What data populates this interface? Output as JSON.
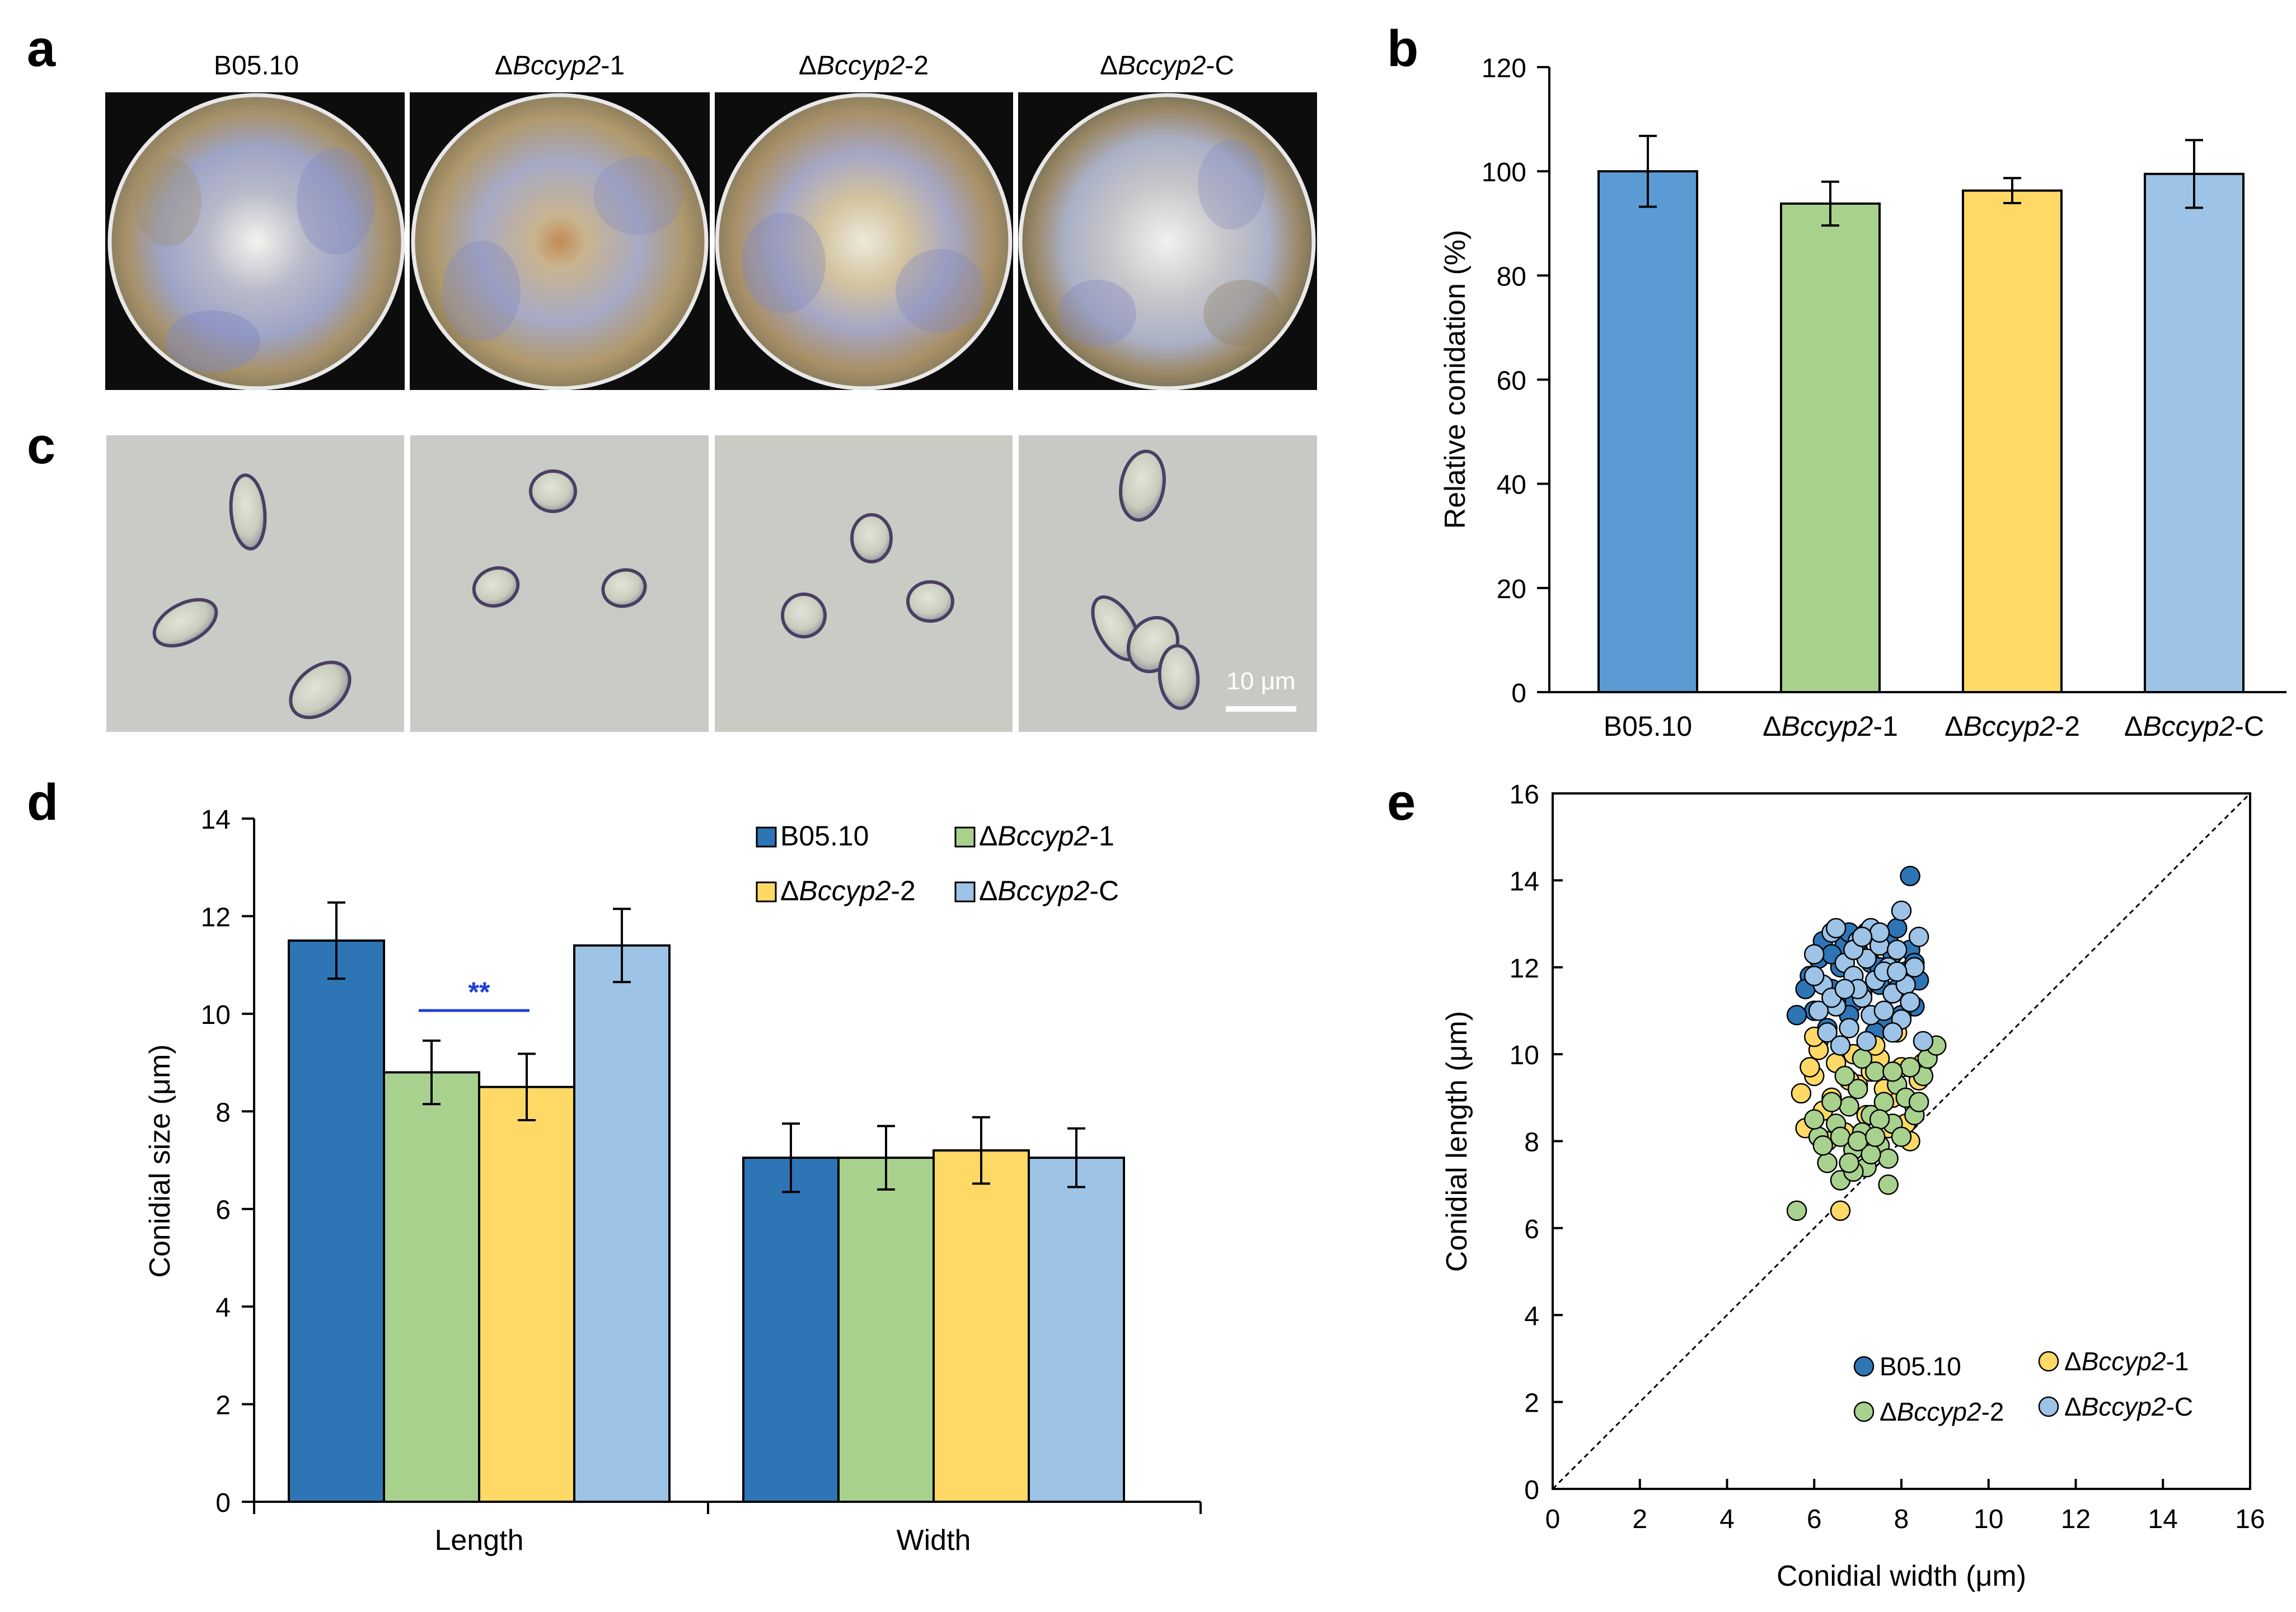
{
  "figure": {
    "panel_letters": {
      "a": "a",
      "b": "b",
      "c": "c",
      "d": "d",
      "e": "e"
    },
    "strains": [
      {
        "prefix": "",
        "italic": "",
        "suffix": "B05.10"
      },
      {
        "prefix": "Δ",
        "italic": "Bccyp2",
        "suffix": "-1"
      },
      {
        "prefix": "Δ",
        "italic": "Bccyp2",
        "suffix": "-2"
      },
      {
        "prefix": "Δ",
        "italic": "Bccyp2",
        "suffix": "-C"
      }
    ],
    "scale_bar_label": "10 μm",
    "colors": {
      "b05": "#2e75b6",
      "b05_b": "#5b9bd5",
      "ko1": "#a9d18e",
      "ko2": "#ffd966",
      "comp": "#9dc3e6",
      "sig": "#1f3fd6",
      "axis": "#000000"
    }
  },
  "chart_data": [
    {
      "panel": "b",
      "type": "bar",
      "title": "",
      "xlabel": "",
      "ylabel": "Relative conidation (%)",
      "ylim": [
        0,
        120
      ],
      "yticks": [
        0,
        20,
        40,
        60,
        80,
        100,
        120
      ],
      "categories": [
        "B05.10",
        "ΔBccyp2-1",
        "ΔBccyp2-2",
        "ΔBccyp2-C"
      ],
      "values": [
        100,
        93.8,
        96.3,
        99.5
      ],
      "errors": [
        6.8,
        4.2,
        2.4,
        6.5
      ]
    },
    {
      "panel": "d",
      "type": "bar",
      "title": "",
      "xlabel": "",
      "ylabel": "Conidial size (μm)",
      "ylim": [
        0,
        14
      ],
      "yticks": [
        0,
        2,
        4,
        6,
        8,
        10,
        12,
        14
      ],
      "categories": [
        "Length",
        "Width"
      ],
      "series": [
        {
          "name": "B05.10",
          "values": [
            11.5,
            7.05
          ],
          "errors": [
            0.78,
            0.7
          ]
        },
        {
          "name": "ΔBccyp2-1",
          "values": [
            8.8,
            7.05
          ],
          "errors": [
            0.65,
            0.65
          ]
        },
        {
          "name": "ΔBccyp2-2",
          "values": [
            8.5,
            7.2
          ],
          "errors": [
            0.68,
            0.68
          ]
        },
        {
          "name": "ΔBccyp2-C",
          "values": [
            11.4,
            7.05
          ],
          "errors": [
            0.75,
            0.6
          ]
        }
      ],
      "annotation": "**",
      "legend_position": "top-right"
    },
    {
      "panel": "e",
      "type": "scatter",
      "title": "",
      "xlabel": "Conidial width (μm)",
      "ylabel": "Conidial length (μm)",
      "xlim": [
        0,
        16
      ],
      "ylim": [
        0,
        16
      ],
      "xticks": [
        0,
        2,
        4,
        6,
        8,
        10,
        12,
        14,
        16
      ],
      "yticks": [
        0,
        2,
        4,
        6,
        8,
        10,
        12,
        14,
        16
      ],
      "reference_line": "y = x",
      "legend_position": "bottom-right",
      "series": [
        {
          "name": "B05.10",
          "color": "#2e75b6",
          "points": [
            [
              5.9,
              11.8
            ],
            [
              6.1,
              12.2
            ],
            [
              6.4,
              11.5
            ],
            [
              6.7,
              12.5
            ],
            [
              6.9,
              11.2
            ],
            [
              7.2,
              12.8
            ],
            [
              7.5,
              11.6
            ],
            [
              7.8,
              12.3
            ],
            [
              8.1,
              11.9
            ],
            [
              8.3,
              11.1
            ],
            [
              6.0,
              11.0
            ],
            [
              6.3,
              10.6
            ],
            [
              6.6,
              12.0
            ],
            [
              6.8,
              10.9
            ],
            [
              7.1,
              11.4
            ],
            [
              7.3,
              12.1
            ],
            [
              7.6,
              10.8
            ],
            [
              7.9,
              11.5
            ],
            [
              8.2,
              12.4
            ],
            [
              6.2,
              12.6
            ],
            [
              6.5,
              11.2
            ],
            [
              7.0,
              12.4
            ],
            [
              7.4,
              10.5
            ],
            [
              7.7,
              12.6
            ],
            [
              8.0,
              10.9
            ],
            [
              8.4,
              11.7
            ],
            [
              5.6,
              10.9
            ],
            [
              8.2,
              14.1
            ],
            [
              6.1,
              10.3
            ],
            [
              7.2,
              10.2
            ],
            [
              7.9,
              12.9
            ],
            [
              6.8,
              12.8
            ],
            [
              8.3,
              12.1
            ],
            [
              5.8,
              11.5
            ],
            [
              7.5,
              12.0
            ],
            [
              6.4,
              12.3
            ]
          ]
        },
        {
          "name": "ΔBccyp2-1",
          "color": "#ffd966",
          "points": [
            [
              5.7,
              9.1
            ],
            [
              6.0,
              9.5
            ],
            [
              6.2,
              8.7
            ],
            [
              6.5,
              9.8
            ],
            [
              6.7,
              8.2
            ],
            [
              7.0,
              9.3
            ],
            [
              7.2,
              8.6
            ],
            [
              7.5,
              9.9
            ],
            [
              7.8,
              9.0
            ],
            [
              8.1,
              8.4
            ],
            [
              8.4,
              9.4
            ],
            [
              5.8,
              8.3
            ],
            [
              6.1,
              10.1
            ],
            [
              6.4,
              9.0
            ],
            [
              6.9,
              10.0
            ],
            [
              7.3,
              9.6
            ],
            [
              7.7,
              8.3
            ],
            [
              8.0,
              9.7
            ],
            [
              8.3,
              8.8
            ],
            [
              6.6,
              6.4
            ],
            [
              6.3,
              8.0
            ],
            [
              7.1,
              8.0
            ],
            [
              7.6,
              9.2
            ],
            [
              8.2,
              8.0
            ],
            [
              6.8,
              9.4
            ],
            [
              7.4,
              10.2
            ],
            [
              5.9,
              9.7
            ],
            [
              8.5,
              9.8
            ],
            [
              6.0,
              10.4
            ],
            [
              7.9,
              10.5
            ]
          ]
        },
        {
          "name": "ΔBccyp2-2",
          "color": "#a9d18e",
          "points": [
            [
              5.6,
              6.4
            ],
            [
              6.1,
              8.1
            ],
            [
              6.3,
              7.5
            ],
            [
              6.5,
              8.4
            ],
            [
              6.6,
              7.1
            ],
            [
              6.8,
              8.8
            ],
            [
              6.9,
              7.8
            ],
            [
              7.0,
              9.2
            ],
            [
              7.1,
              8.2
            ],
            [
              7.2,
              7.4
            ],
            [
              7.3,
              8.6
            ],
            [
              7.4,
              9.6
            ],
            [
              7.5,
              7.9
            ],
            [
              7.6,
              8.9
            ],
            [
              7.7,
              7.6
            ],
            [
              7.8,
              8.4
            ],
            [
              7.9,
              9.3
            ],
            [
              8.0,
              8.1
            ],
            [
              8.1,
              9.0
            ],
            [
              8.3,
              8.6
            ],
            [
              8.5,
              9.5
            ],
            [
              8.6,
              9.9
            ],
            [
              8.8,
              10.2
            ],
            [
              7.7,
              7.0
            ],
            [
              6.4,
              8.9
            ],
            [
              6.7,
              9.5
            ],
            [
              6.2,
              7.9
            ],
            [
              7.1,
              9.9
            ],
            [
              6.9,
              7.3
            ],
            [
              7.5,
              8.5
            ],
            [
              8.2,
              9.7
            ],
            [
              6.6,
              8.1
            ],
            [
              7.3,
              7.7
            ],
            [
              7.8,
              9.6
            ],
            [
              6.0,
              8.5
            ],
            [
              7.0,
              8.0
            ],
            [
              8.4,
              8.9
            ],
            [
              6.8,
              7.5
            ],
            [
              7.4,
              8.1
            ]
          ]
        },
        {
          "name": "ΔBccyp2-C",
          "color": "#9dc3e6",
          "points": [
            [
              6.0,
              12.3
            ],
            [
              6.2,
              11.6
            ],
            [
              6.4,
              12.8
            ],
            [
              6.5,
              11.1
            ],
            [
              6.7,
              12.1
            ],
            [
              6.8,
              10.6
            ],
            [
              6.9,
              11.8
            ],
            [
              7.0,
              12.6
            ],
            [
              7.1,
              11.3
            ],
            [
              7.2,
              12.2
            ],
            [
              7.3,
              10.9
            ],
            [
              7.4,
              11.7
            ],
            [
              7.5,
              12.5
            ],
            [
              7.6,
              11.0
            ],
            [
              7.7,
              12.0
            ],
            [
              7.8,
              11.4
            ],
            [
              7.9,
              12.4
            ],
            [
              8.0,
              10.8
            ],
            [
              8.1,
              11.6
            ],
            [
              8.3,
              12.0
            ],
            [
              8.4,
              12.7
            ],
            [
              8.0,
              13.3
            ],
            [
              6.5,
              12.9
            ],
            [
              6.3,
              10.5
            ],
            [
              7.2,
              10.3
            ],
            [
              8.5,
              10.3
            ],
            [
              6.1,
              11.0
            ],
            [
              6.6,
              10.2
            ],
            [
              7.0,
              11.5
            ],
            [
              7.3,
              12.9
            ],
            [
              7.6,
              11.9
            ],
            [
              6.4,
              11.3
            ],
            [
              6.9,
              12.4
            ],
            [
              7.8,
              10.5
            ],
            [
              8.2,
              11.2
            ],
            [
              6.0,
              11.8
            ],
            [
              7.5,
              12.8
            ],
            [
              6.7,
              11.5
            ],
            [
              7.1,
              12.7
            ],
            [
              7.9,
              11.9
            ]
          ]
        }
      ]
    }
  ]
}
